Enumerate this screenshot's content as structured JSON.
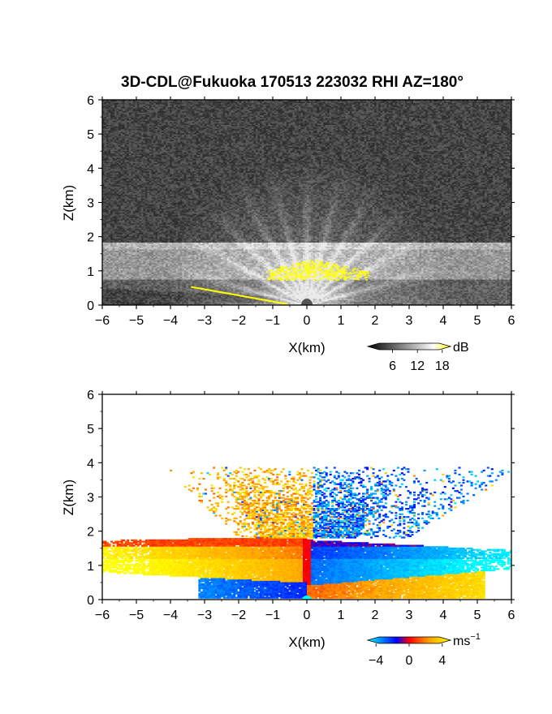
{
  "figure": {
    "title": "3D-CDL@Fukuoka 170513 223032 RHI AZ=180°"
  },
  "chart_data": [
    {
      "type": "heatmap",
      "name": "snr",
      "title": "3D-CDL@Fukuoka 170513 223032 RHI AZ=180°",
      "xlabel": "X(km)",
      "ylabel": "Z(km)",
      "xlim": [
        -6,
        6
      ],
      "ylim": [
        0,
        6
      ],
      "xticks": [
        -6,
        -5,
        -4,
        -3,
        -2,
        -1,
        0,
        1,
        2,
        3,
        4,
        5,
        6
      ],
      "yticks": [
        0,
        1,
        2,
        3,
        4,
        5,
        6
      ],
      "colorbar": {
        "unit": "dB",
        "ticks": [
          6,
          12,
          18
        ],
        "range": [
          0,
          20
        ],
        "colors": [
          "#000000",
          "#ffffff",
          "#ffff00"
        ]
      },
      "features": {
        "boundary_layer_top_km": 1.7,
        "bright_core_center_km": [
          0,
          1.1
        ],
        "saturated_patch_x_km": [
          -1.2,
          1.8
        ],
        "saturated_patch_z_km": [
          0.75,
          1.35
        ],
        "ground_level_band": "saturated near surface from -3.4 to -0.6 km"
      }
    },
    {
      "type": "heatmap",
      "name": "doppler-velocity",
      "xlabel": "X(km)",
      "ylabel": "Z(km)",
      "xlim": [
        -6,
        6
      ],
      "ylim": [
        0,
        6
      ],
      "xticks": [
        -6,
        -5,
        -4,
        -3,
        -2,
        -1,
        0,
        1,
        2,
        3,
        4,
        5,
        6
      ],
      "yticks": [
        0,
        1,
        2,
        3,
        4,
        5,
        6
      ],
      "colorbar": {
        "unit": "ms",
        "unit_exponent": "−1",
        "ticks": [
          "−4",
          "0",
          "4"
        ],
        "tick_values": [
          -4,
          0,
          4
        ],
        "range": [
          -5,
          5
        ],
        "colors": [
          "#00ffff",
          "#0000ff",
          "#ff0000",
          "#ffa500",
          "#ffff00"
        ]
      },
      "features": {
        "positive_side": "x < 0, velocities +2 to +5 m/s (red/orange/yellow) between 0.5 and 1.8 km",
        "negative_side": "x > 0, velocities −2 to −5 m/s (blue/cyan) between 0.4 and 1.7 km",
        "near_surface_reversal": "thin layer below 0.4 km with opposite sign",
        "upper_plume_z_km": [
          1.8,
          3.8
        ]
      }
    }
  ]
}
